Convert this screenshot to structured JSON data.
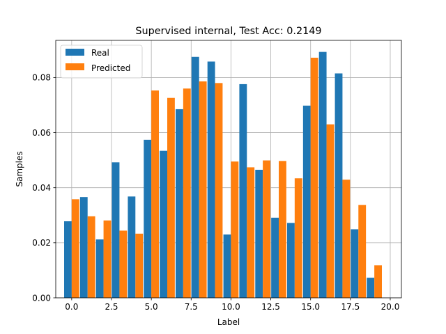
{
  "chart_data": {
    "type": "bar",
    "title": "Supervised internal, Test Acc: 0.2149",
    "xlabel": "Label",
    "ylabel": "Samples",
    "xlim": [
      -1.0,
      20.7
    ],
    "ylim": [
      0.0,
      0.0935
    ],
    "xticks": [
      "0.0",
      "2.5",
      "5.0",
      "7.5",
      "10.0",
      "12.5",
      "15.0",
      "17.5",
      "20.0"
    ],
    "xtick_values": [
      0,
      2.5,
      5,
      7.5,
      10,
      12.5,
      15,
      17.5,
      20
    ],
    "yticks": [
      "0.00",
      "0.02",
      "0.04",
      "0.06",
      "0.08"
    ],
    "ytick_values": [
      0,
      0.02,
      0.04,
      0.06,
      0.08
    ],
    "grid": true,
    "legend_position": "upper-left",
    "series": [
      {
        "name": "Real",
        "color": "#1f77b4",
        "x": [
          0,
          1,
          2,
          3,
          4,
          5,
          6,
          7,
          8,
          9,
          10,
          11,
          12,
          13,
          14,
          15,
          16,
          17,
          18,
          19
        ],
        "values": [
          0.0278,
          0.0366,
          0.0212,
          0.0492,
          0.0368,
          0.0574,
          0.0534,
          0.0685,
          0.0875,
          0.0858,
          0.023,
          0.0776,
          0.0465,
          0.0291,
          0.0272,
          0.0698,
          0.0893,
          0.0815,
          0.0249,
          0.0073
        ]
      },
      {
        "name": "Predicted",
        "color": "#ff7f0e",
        "x": [
          0,
          1,
          2,
          3,
          4,
          5,
          6,
          7,
          8,
          9,
          10,
          11,
          12,
          13,
          14,
          15,
          16,
          17,
          18,
          19
        ],
        "values": [
          0.0358,
          0.0296,
          0.0281,
          0.0244,
          0.0233,
          0.0753,
          0.0726,
          0.076,
          0.0786,
          0.078,
          0.0495,
          0.0474,
          0.0499,
          0.0497,
          0.0434,
          0.0872,
          0.063,
          0.0429,
          0.0337,
          0.0118
        ]
      }
    ]
  }
}
